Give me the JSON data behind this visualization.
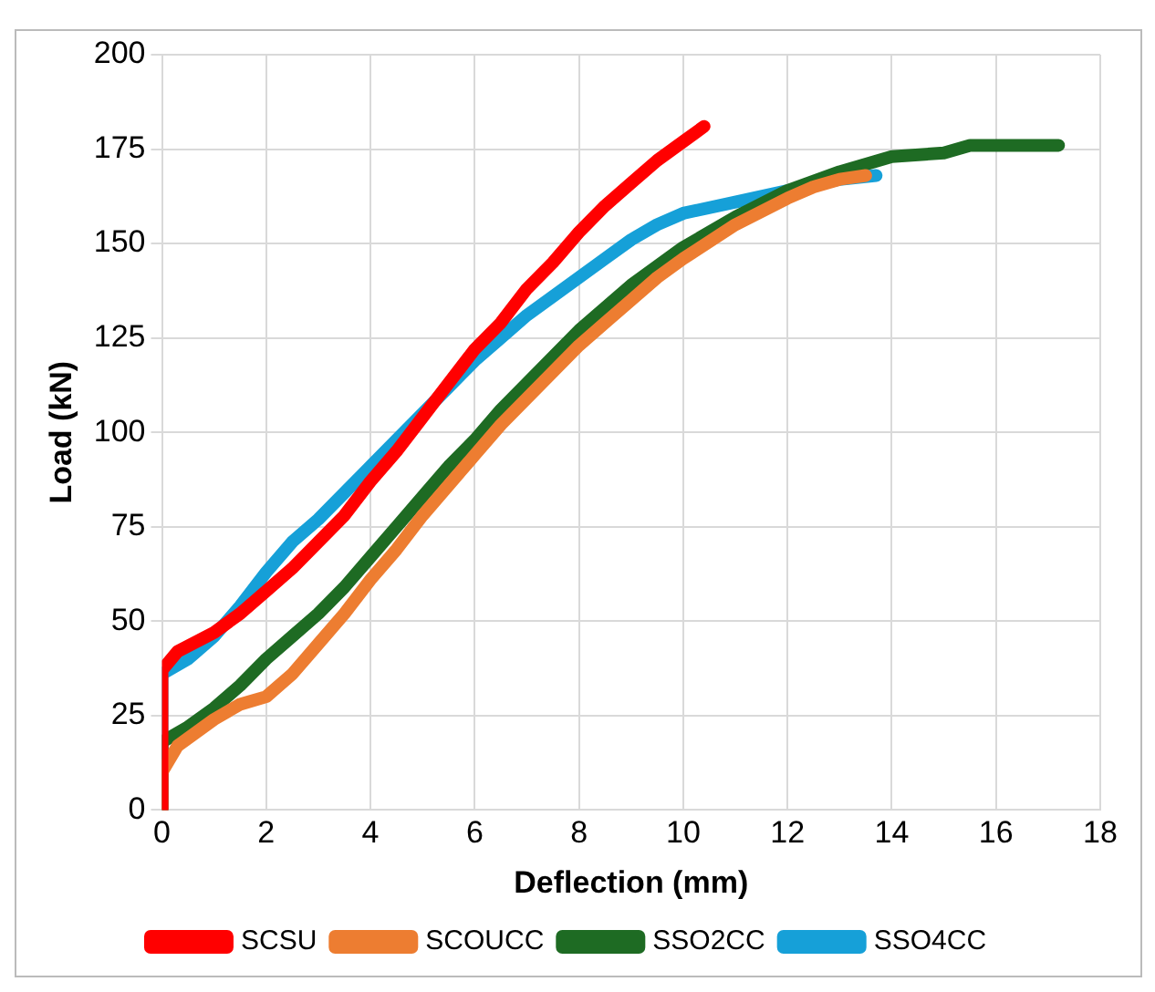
{
  "chart_data": {
    "type": "line",
    "xlabel": "Deflection (mm)",
    "ylabel": "Load (kN)",
    "xlim": [
      0,
      18
    ],
    "xticks": [
      0,
      2,
      4,
      6,
      8,
      10,
      12,
      14,
      16,
      18
    ],
    "ylim": [
      0,
      200
    ],
    "yticks": [
      0,
      25,
      50,
      75,
      100,
      125,
      150,
      175,
      200
    ],
    "grid": true,
    "legend": "bottom",
    "marker": "none",
    "line_style": "solid",
    "series": [
      {
        "name": "SCSU",
        "color": "#ff0000",
        "x": [
          0,
          0,
          0.3,
          1,
          1.5,
          2,
          2.5,
          3,
          3.5,
          4,
          4.5,
          5,
          5.5,
          6,
          6.5,
          7,
          7.5,
          8,
          8.5,
          9,
          9.5,
          10,
          10.4
        ],
        "values": [
          0,
          37,
          42,
          47,
          52,
          58,
          64,
          71,
          78,
          87,
          95,
          104,
          113,
          122,
          129,
          138,
          145,
          153,
          160,
          166,
          172,
          177,
          181
        ]
      },
      {
        "name": "SCOUCC",
        "color": "#ed7d31",
        "x": [
          0,
          0,
          0.3,
          1,
          1.5,
          2,
          2.5,
          3,
          3.5,
          4,
          4.5,
          5,
          5.5,
          6,
          6.5,
          7,
          7.5,
          8,
          8.5,
          9,
          9.5,
          10,
          11,
          12,
          12.5,
          13,
          13.5
        ],
        "values": [
          0,
          10,
          17,
          24,
          28,
          30,
          36,
          44,
          52,
          61,
          69,
          78,
          86,
          94,
          102,
          109,
          116,
          123,
          129,
          135,
          141,
          146,
          155,
          162,
          165,
          167,
          168
        ]
      },
      {
        "name": "SSO2CC",
        "color": "#1e6b23",
        "x": [
          0,
          0,
          0.5,
          1,
          1.5,
          2,
          2.5,
          3,
          3.5,
          4,
          4.5,
          5,
          5.5,
          6,
          6.5,
          7,
          7.5,
          8,
          8.5,
          9,
          9.5,
          10,
          11,
          12,
          13,
          14,
          15,
          15.5,
          17.2
        ],
        "values": [
          0,
          18,
          22,
          27,
          33,
          40,
          46,
          52,
          59,
          67,
          75,
          83,
          91,
          98,
          106,
          113,
          120,
          127,
          133,
          139,
          144,
          149,
          157,
          164,
          169,
          173,
          174,
          176,
          176
        ]
      },
      {
        "name": "SSO4CC",
        "color": "#16a0d8",
        "x": [
          0,
          0,
          0.5,
          1,
          1.5,
          2,
          2.5,
          3,
          3.5,
          4,
          4.5,
          5,
          5.5,
          6,
          6.5,
          7,
          7.5,
          8,
          8.5,
          9,
          9.5,
          10,
          11,
          12,
          13,
          13.7
        ],
        "values": [
          0,
          36,
          40,
          46,
          54,
          63,
          71,
          77,
          84,
          91,
          98,
          105,
          112,
          119,
          125,
          131,
          136,
          141,
          146,
          151,
          155,
          158,
          161,
          164,
          167,
          168
        ]
      }
    ]
  }
}
